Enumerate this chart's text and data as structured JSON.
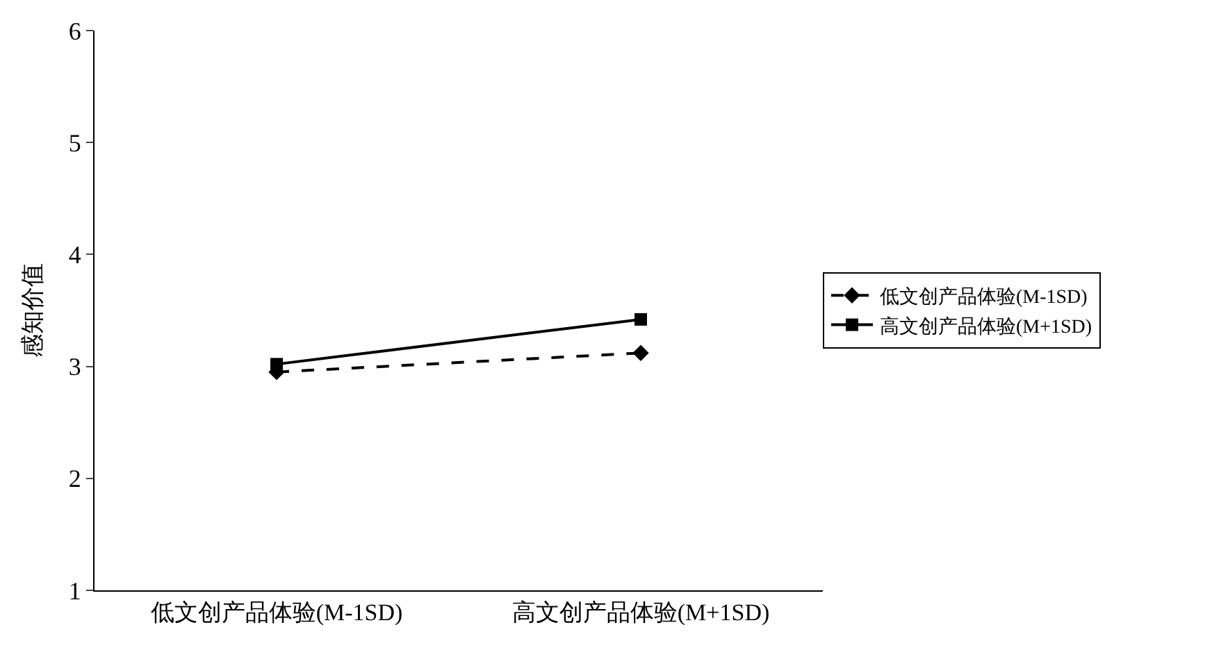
{
  "chart_data": {
    "type": "line",
    "ylabel": "感知价值",
    "categories": [
      "低文创产品体验(M-1SD)",
      "高文创产品体验(M+1SD)"
    ],
    "series": [
      {
        "name": "低文创产品体验(M-1SD)",
        "color": "#000000",
        "values": [
          2.95,
          3.12
        ],
        "marker": "diamond",
        "line_style": "dashed"
      },
      {
        "name": "高文创产品体验(M+1SD)",
        "color": "#000000",
        "values": [
          3.02,
          3.42
        ],
        "marker": "square",
        "line_style": "solid"
      }
    ],
    "ylim": [
      1,
      6
    ],
    "yticks": [
      1,
      2,
      3,
      4,
      5,
      6
    ],
    "legend": "right"
  }
}
